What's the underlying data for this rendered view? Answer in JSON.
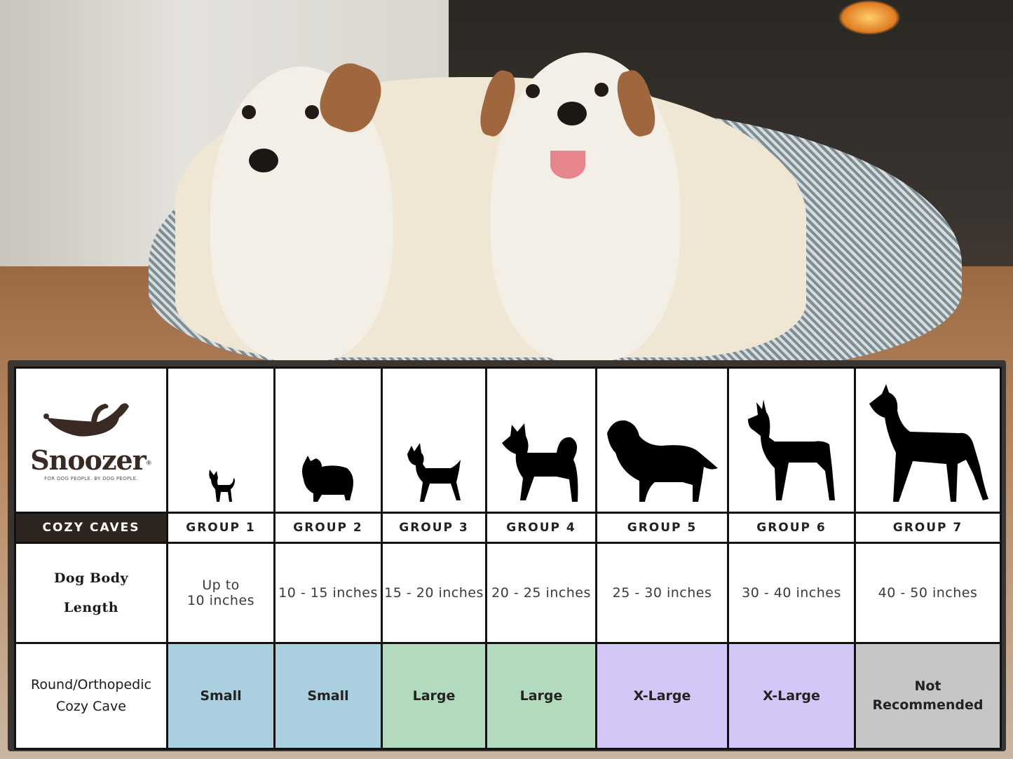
{
  "brand": {
    "name": "Snoozer",
    "registered": "®",
    "tagline": "FOR DOG PEOPLE. BY DOG PEOPLE."
  },
  "table": {
    "product_header": "COZY CAVES",
    "groups": [
      "GROUP 1",
      "GROUP 2",
      "GROUP 3",
      "GROUP 4",
      "GROUP 5",
      "GROUP 6",
      "GROUP 7"
    ],
    "length_label": [
      "Dog Body",
      "Length"
    ],
    "lengths": [
      [
        "Up to",
        "10 inches"
      ],
      [
        "10 - 15 inches"
      ],
      [
        "15 - 20 inches"
      ],
      [
        "20 - 25 inches"
      ],
      [
        "25 - 30 inches"
      ],
      [
        "30 - 40 inches"
      ],
      [
        "40 - 50 inches"
      ]
    ],
    "size_label": [
      "Round/Orthopedic",
      "Cozy Cave"
    ],
    "sizes": [
      [
        "Small"
      ],
      [
        "Small"
      ],
      [
        "Large"
      ],
      [
        "Large"
      ],
      [
        "X-Large"
      ],
      [
        "X-Large"
      ],
      [
        "Not",
        "Recommended"
      ]
    ],
    "size_colors": [
      "#aacfdf",
      "#aacfdf",
      "#b1dbbc",
      "#b1dbbc",
      "#d2c7f7",
      "#d2c7f7",
      "#c6c6c6"
    ],
    "dog_icons": [
      "chihuahua-icon",
      "pomeranian-icon",
      "boston-terrier-icon",
      "shiba-icon",
      "golden-retriever-icon",
      "doberman-icon",
      "great-dane-icon"
    ]
  }
}
